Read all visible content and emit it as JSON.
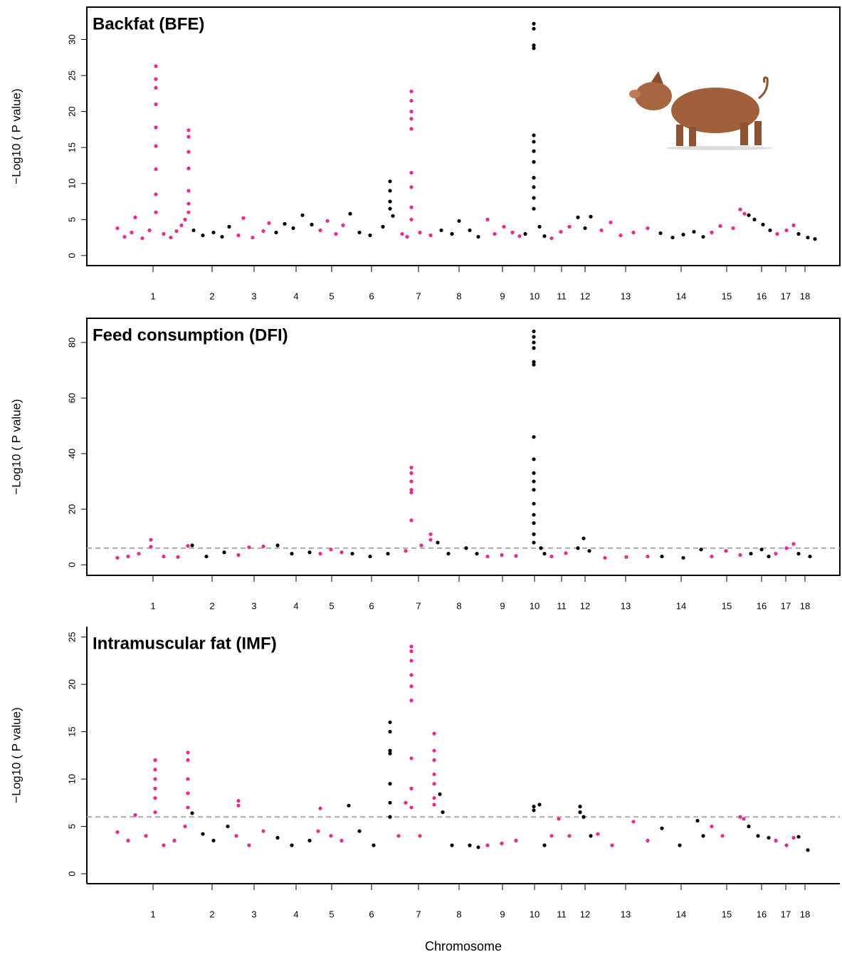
{
  "chart_data": [
    {
      "type": "scatter",
      "title": "Backfat (BFE)",
      "ylabel": "−Log10 ( P value)",
      "box": true,
      "xlim": [
        -38,
        1020
      ],
      "ylim": [
        -1.4,
        34.5
      ],
      "yticks": [
        0,
        5,
        10,
        15,
        20,
        25,
        30
      ],
      "xticks": [
        {
          "value": 55,
          "label": "1"
        },
        {
          "value": 138,
          "label": "2"
        },
        {
          "value": 197,
          "label": "3"
        },
        {
          "value": 256,
          "label": "4"
        },
        {
          "value": 306,
          "label": "5"
        },
        {
          "value": 362,
          "label": "6"
        },
        {
          "value": 428,
          "label": "7"
        },
        {
          "value": 485,
          "label": "8"
        },
        {
          "value": 546,
          "label": "9"
        },
        {
          "value": 591,
          "label": "10"
        },
        {
          "value": 629,
          "label": "11"
        },
        {
          "value": 662,
          "label": "12"
        },
        {
          "value": 719,
          "label": "13"
        },
        {
          "value": 797,
          "label": "14"
        },
        {
          "value": 861,
          "label": "15"
        },
        {
          "value": 910,
          "label": "16"
        },
        {
          "value": 944,
          "label": "17"
        },
        {
          "value": 971,
          "label": "18"
        }
      ],
      "series": [
        {
          "color": "#f0288c",
          "x": [
            5,
            15,
            25,
            30,
            40,
            50,
            59,
            59,
            59,
            59,
            59,
            59,
            59,
            59,
            59,
            70,
            80,
            88,
            95,
            100,
            105,
            105,
            105,
            105,
            105,
            105,
            105,
            175,
            182,
            195,
            210,
            218,
            290,
            300,
            312,
            322,
            405,
            412,
            418,
            418,
            418,
            418,
            418,
            418,
            418,
            418,
            418,
            430,
            445,
            525,
            535,
            548,
            560,
            570,
            615,
            628,
            640,
            685,
            698,
            712,
            730,
            750,
            840,
            852,
            870,
            880,
            886,
            932,
            945,
            955
          ],
          "values": [
            3.8,
            2.6,
            3.2,
            5.3,
            2.4,
            3.5,
            26.3,
            24.5,
            23.3,
            21,
            17.8,
            15.2,
            12,
            8.5,
            6,
            3,
            2.5,
            3.4,
            4.2,
            5,
            17.4,
            16.5,
            14.4,
            12.1,
            9,
            7.2,
            6,
            2.8,
            5.2,
            2.5,
            3.4,
            4.5,
            3.5,
            4.8,
            3,
            4.2,
            3,
            2.6,
            22.8,
            21.5,
            20,
            19,
            17.6,
            11.5,
            9.5,
            6.7,
            5,
            3.2,
            2.8,
            5,
            3,
            4,
            3.2,
            2.7,
            2.4,
            3.3,
            4,
            3.5,
            4.6,
            2.8,
            3.2,
            3.8,
            3.2,
            4.1,
            3.8,
            6.4,
            5.8,
            3,
            3.5,
            4.2
          ]
        },
        {
          "color": "#000000",
          "x": [
            112,
            125,
            140,
            152,
            162,
            228,
            240,
            252,
            265,
            278,
            332,
            345,
            360,
            378,
            388,
            388,
            388,
            388,
            392,
            460,
            475,
            485,
            500,
            512,
            578,
            590,
            590,
            590,
            590,
            590,
            590,
            590,
            590,
            590,
            590,
            590,
            590,
            598,
            605,
            652,
            662,
            670,
            768,
            785,
            800,
            815,
            828,
            892,
            900,
            912,
            922,
            962,
            975,
            985
          ],
          "values": [
            3.5,
            2.8,
            3.2,
            2.6,
            4,
            3.2,
            4.4,
            3.8,
            5.6,
            4.3,
            5.8,
            3.2,
            2.8,
            4,
            10.3,
            9,
            7.5,
            6.5,
            5.5,
            3.5,
            3,
            4.8,
            3.5,
            2.6,
            3,
            32.2,
            31.5,
            29.2,
            28.8,
            16.7,
            15.8,
            14.5,
            13,
            10.8,
            9.5,
            8,
            6.5,
            4,
            2.7,
            5.3,
            3.8,
            5.4,
            3.1,
            2.5,
            2.9,
            3.3,
            2.6,
            5.6,
            5,
            4.3,
            3.5,
            3,
            2.5,
            2.3
          ]
        }
      ]
    },
    {
      "type": "scatter",
      "title": "Feed consumption (DFI)",
      "ylabel": "−Log10 ( P value)",
      "box": true,
      "threshold": 6,
      "xlim": [
        -38,
        1020
      ],
      "ylim": [
        -3.8,
        88.7
      ],
      "yticks": [
        0,
        20,
        40,
        60,
        80
      ],
      "xticks": [
        {
          "value": 55,
          "label": "1"
        },
        {
          "value": 138,
          "label": "2"
        },
        {
          "value": 197,
          "label": "3"
        },
        {
          "value": 256,
          "label": "4"
        },
        {
          "value": 306,
          "label": "5"
        },
        {
          "value": 362,
          "label": "6"
        },
        {
          "value": 428,
          "label": "7"
        },
        {
          "value": 485,
          "label": "8"
        },
        {
          "value": 546,
          "label": "9"
        },
        {
          "value": 591,
          "label": "10"
        },
        {
          "value": 629,
          "label": "11"
        },
        {
          "value": 662,
          "label": "12"
        },
        {
          "value": 719,
          "label": "13"
        },
        {
          "value": 797,
          "label": "14"
        },
        {
          "value": 861,
          "label": "15"
        },
        {
          "value": 910,
          "label": "16"
        },
        {
          "value": 944,
          "label": "17"
        },
        {
          "value": 971,
          "label": "18"
        }
      ],
      "series": [
        {
          "color": "#f0288c",
          "x": [
            5,
            20,
            35,
            52,
            52,
            70,
            90,
            104,
            175,
            190,
            210,
            290,
            305,
            320,
            410,
            418,
            418,
            418,
            418,
            418,
            418,
            432,
            445,
            445,
            525,
            545,
            565,
            615,
            635,
            690,
            720,
            750,
            840,
            860,
            880,
            930,
            945,
            955
          ],
          "values": [
            2.5,
            3,
            4,
            9,
            6.5,
            3,
            2.8,
            6.8,
            3.5,
            6.3,
            6.6,
            4,
            5.5,
            4.5,
            5,
            35,
            33,
            30,
            27,
            26,
            16,
            7,
            11,
            9,
            3,
            3.5,
            3.2,
            3,
            4.2,
            2.5,
            2.8,
            3,
            3,
            5,
            3.5,
            4,
            6,
            7.5
          ]
        },
        {
          "color": "#000000",
          "x": [
            110,
            130,
            155,
            230,
            250,
            275,
            335,
            360,
            385,
            455,
            470,
            495,
            510,
            590,
            590,
            590,
            590,
            590,
            590,
            590,
            590,
            590,
            590,
            590,
            590,
            590,
            590,
            590,
            590,
            600,
            605,
            652,
            660,
            668,
            770,
            800,
            825,
            895,
            910,
            920,
            962,
            978
          ],
          "values": [
            7,
            3,
            4.5,
            7,
            4,
            4.5,
            4,
            3,
            4,
            8,
            4,
            6,
            4,
            84,
            82,
            80,
            78,
            73,
            72,
            46,
            38,
            33,
            30,
            27,
            22,
            18,
            15,
            11,
            8,
            6,
            4,
            6,
            9.5,
            5,
            3,
            2.5,
            5.5,
            4,
            5.5,
            3,
            4,
            3
          ]
        }
      ]
    },
    {
      "type": "scatter",
      "title": "Intramuscular fat (IMF)",
      "ylabel": "−Log10 ( P value)",
      "xlabel": "Chromosome",
      "box": false,
      "threshold": 6,
      "xlim": [
        -38,
        1020
      ],
      "ylim": [
        -1.05,
        26.1
      ],
      "yticks": [
        0,
        5,
        10,
        15,
        20,
        25
      ],
      "xticks": [
        {
          "value": 55,
          "label": "1"
        },
        {
          "value": 138,
          "label": "2"
        },
        {
          "value": 197,
          "label": "3"
        },
        {
          "value": 256,
          "label": "4"
        },
        {
          "value": 306,
          "label": "5"
        },
        {
          "value": 362,
          "label": "6"
        },
        {
          "value": 428,
          "label": "7"
        },
        {
          "value": 485,
          "label": "8"
        },
        {
          "value": 546,
          "label": "9"
        },
        {
          "value": 591,
          "label": "10"
        },
        {
          "value": 629,
          "label": "11"
        },
        {
          "value": 662,
          "label": "12"
        },
        {
          "value": 719,
          "label": "13"
        },
        {
          "value": 797,
          "label": "14"
        },
        {
          "value": 861,
          "label": "15"
        },
        {
          "value": 910,
          "label": "16"
        },
        {
          "value": 944,
          "label": "17"
        },
        {
          "value": 971,
          "label": "18"
        }
      ],
      "series": [
        {
          "color": "#f0288c",
          "x": [
            5,
            20,
            30,
            45,
            58,
            58,
            58,
            58,
            58,
            58,
            70,
            85,
            100,
            104,
            104,
            104,
            104,
            104,
            172,
            175,
            175,
            190,
            210,
            287,
            290,
            305,
            320,
            400,
            410,
            418,
            418,
            418,
            418,
            418,
            418,
            418,
            418,
            418,
            430,
            450,
            450,
            450,
            450,
            450,
            450,
            450,
            525,
            545,
            565,
            615,
            625,
            640,
            680,
            700,
            730,
            750,
            840,
            855,
            880,
            885,
            930,
            945,
            955
          ],
          "values": [
            4.4,
            3.5,
            6.2,
            4,
            12,
            11,
            10,
            9,
            8,
            6.5,
            3,
            3.5,
            5,
            12.8,
            12,
            10,
            8.5,
            7,
            4,
            7.7,
            7.2,
            3,
            4.5,
            4.5,
            6.9,
            4,
            3.5,
            4,
            7.5,
            24,
            23.5,
            22.5,
            21,
            19.8,
            18.3,
            12.2,
            9,
            7,
            4,
            14.8,
            13,
            12,
            10.5,
            9.5,
            8,
            7.3,
            3,
            3.2,
            3.5,
            4,
            5.8,
            4,
            4.2,
            3,
            5.5,
            3.5,
            5,
            4,
            6,
            5.8,
            3.5,
            3,
            3.8
          ]
        },
        {
          "color": "#000000",
          "x": [
            110,
            125,
            140,
            160,
            230,
            250,
            275,
            330,
            345,
            365,
            388,
            388,
            388,
            388,
            388,
            388,
            388,
            458,
            462,
            475,
            500,
            512,
            590,
            590,
            598,
            605,
            655,
            655,
            660,
            670,
            770,
            795,
            820,
            828,
            892,
            905,
            920,
            962,
            975
          ],
          "values": [
            6.4,
            4.2,
            3.5,
            5,
            3.8,
            3,
            3.5,
            7.2,
            4.5,
            3,
            16,
            15,
            13,
            12.7,
            9.5,
            7.5,
            6,
            8.4,
            6.5,
            3,
            3,
            2.8,
            7.1,
            6.7,
            7.3,
            3,
            7.1,
            6.5,
            6,
            4,
            4.8,
            3,
            5.6,
            4,
            5,
            4,
            3.8,
            3.9,
            2.5
          ]
        }
      ]
    }
  ]
}
